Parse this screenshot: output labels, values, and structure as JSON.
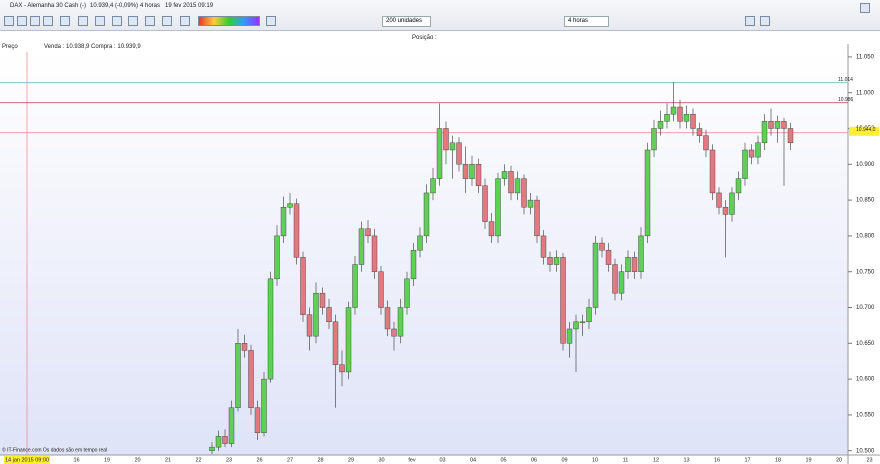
{
  "header": {
    "title": "DAX - Alemanha 30 Cash (-)",
    "quote": "10.939,4 (-0,09%)",
    "period": "4 horas",
    "datetime": "19 fev 2015 09:19",
    "units_select": "200 unidades",
    "period_select": "4 horas",
    "position": "Posição :",
    "price_label": "Preço",
    "bid_ask": "Venda : 10.938,9 Compra : 10.939,9"
  },
  "chart_data": {
    "type": "candlestick",
    "open": [
      10500,
      10505,
      10520,
      10510,
      10560,
      10650,
      10640,
      10560,
      10525,
      10600,
      10740,
      10800,
      10840,
      10845,
      10770,
      10690,
      10660,
      10720,
      10700,
      10680,
      10620,
      10610,
      10700,
      10760,
      10810,
      10800,
      10750,
      10700,
      10670,
      10660,
      10700,
      10740,
      10780,
      10800,
      10860,
      10880,
      10950,
      10920,
      10930,
      10900,
      10880,
      10900,
      10870,
      10820,
      10800,
      10880,
      10890,
      10860,
      10880,
      10840,
      10850,
      10800,
      10770,
      10760,
      10770,
      10650,
      10670,
      10680,
      10680,
      10700,
      10790,
      10780,
      10760,
      10720,
      10750,
      10770,
      10750,
      10800,
      10920,
      10950,
      10960,
      10970,
      10980,
      10960,
      10970,
      10950,
      10940,
      10920,
      10860,
      10840,
      10830,
      10860,
      10880,
      10920,
      10910,
      10930,
      10960,
      10950,
      10960,
      10950
    ],
    "high": [
      10512,
      10528,
      10530,
      10570,
      10670,
      10662,
      10648,
      10570,
      10610,
      10750,
      10815,
      10855,
      10860,
      10852,
      10778,
      10700,
      10735,
      10728,
      10712,
      10690,
      10640,
      10708,
      10772,
      10820,
      10822,
      10810,
      10758,
      10710,
      10680,
      10712,
      10750,
      10790,
      10812,
      10872,
      10895,
      10985,
      10960,
      10940,
      10938,
      10925,
      10912,
      10908,
      10880,
      10832,
      10888,
      10900,
      10898,
      10890,
      10886,
      10860,
      10856,
      10808,
      10778,
      10780,
      10776,
      10680,
      10690,
      10690,
      10712,
      10800,
      10798,
      10790,
      10768,
      10760,
      10780,
      10778,
      10812,
      10930,
      10962,
      10975,
      10985,
      11015,
      10990,
      10982,
      10978,
      10958,
      10948,
      10928,
      10868,
      10850,
      10868,
      10890,
      10930,
      10928,
      10940,
      10970,
      10978,
      10968,
      10965,
      10958
    ],
    "low": [
      10495,
      10500,
      10505,
      10505,
      10555,
      10630,
      10550,
      10515,
      10520,
      10595,
      10730,
      10790,
      10830,
      10760,
      10680,
      10640,
      10650,
      10690,
      10670,
      10560,
      10590,
      10600,
      10690,
      10750,
      10790,
      10740,
      10690,
      10660,
      10640,
      10650,
      10690,
      10730,
      10770,
      10790,
      10850,
      10870,
      10900,
      10880,
      10890,
      10860,
      10870,
      10860,
      10810,
      10790,
      10790,
      10870,
      10850,
      10850,
      10830,
      10830,
      10790,
      10760,
      10750,
      10750,
      10640,
      10630,
      10610,
      10660,
      10670,
      10690,
      10770,
      10750,
      10710,
      10710,
      10740,
      10740,
      10740,
      10790,
      10910,
      10940,
      10950,
      10960,
      10950,
      10950,
      10940,
      10930,
      10910,
      10850,
      10830,
      10770,
      10820,
      10850,
      10870,
      10900,
      10900,
      10920,
      10940,
      10930,
      10870,
      10920
    ],
    "close": [
      10505,
      10520,
      10510,
      10560,
      10650,
      10640,
      10560,
      10525,
      10600,
      10740,
      10800,
      10840,
      10845,
      10770,
      10690,
      10660,
      10720,
      10700,
      10680,
      10620,
      10610,
      10700,
      10760,
      10810,
      10800,
      10750,
      10700,
      10670,
      10660,
      10700,
      10740,
      10780,
      10800,
      10860,
      10880,
      10950,
      10920,
      10930,
      10900,
      10880,
      10900,
      10870,
      10820,
      10800,
      10880,
      10890,
      10860,
      10880,
      10840,
      10850,
      10800,
      10770,
      10760,
      10770,
      10650,
      10670,
      10680,
      10680,
      10700,
      10790,
      10780,
      10760,
      10720,
      10750,
      10770,
      10750,
      10800,
      10920,
      10950,
      10960,
      10970,
      10980,
      10960,
      10970,
      10950,
      10940,
      10920,
      10860,
      10840,
      10830,
      10860,
      10880,
      10920,
      10910,
      10930,
      10960,
      10950,
      10960,
      10950,
      10930
    ],
    "up_color": "#5fcf55",
    "down_color": "#e07a80",
    "x_labels": [
      "14 jan 2015 09:00",
      "16",
      "19",
      "20",
      "21",
      "22",
      "23",
      "26",
      "27",
      "28",
      "29",
      "30",
      "fev",
      "03",
      "04",
      "05",
      "06",
      "09",
      "10",
      "11",
      "12",
      "13",
      "16",
      "17",
      "18",
      "19",
      "20",
      "23"
    ],
    "ylim": [
      10494,
      11068
    ],
    "yticks": [
      {
        "value": 10500,
        "label": "10.500"
      },
      {
        "value": 10550,
        "label": "10.550"
      },
      {
        "value": 10600,
        "label": "10.600"
      },
      {
        "value": 10650,
        "label": "10.650"
      },
      {
        "value": 10700,
        "label": "10.700"
      },
      {
        "value": 10750,
        "label": "10.750"
      },
      {
        "value": 10800,
        "label": "10.800"
      },
      {
        "value": 10850,
        "label": "10.850"
      },
      {
        "value": 10900,
        "label": "10.900"
      },
      {
        "value": 10950,
        "label": "10.950"
      },
      {
        "value": 11000,
        "label": "11.000"
      },
      {
        "value": 11050,
        "label": "11.050"
      }
    ],
    "levels": [
      {
        "value": 11014,
        "label": "11.014",
        "color": "#7fb3c8"
      },
      {
        "value": 10986,
        "label": "10.986",
        "color": "#b04050"
      },
      {
        "value": 10944,
        "label": "10.944,0",
        "color": "#f08090"
      }
    ],
    "footer": "© IT-Finance.com Os dados são em tempo real"
  }
}
